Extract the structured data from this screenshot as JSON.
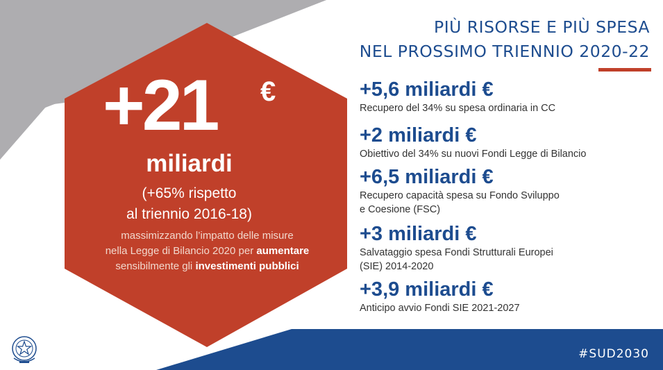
{
  "colors": {
    "gray": "#aeadb0",
    "hexagon": "#c0402a",
    "navy": "#1d4c8f",
    "text": "#333333"
  },
  "hexagon": {
    "headline": "+21",
    "currency": "€",
    "unit": "miliardi",
    "percent_line1": "(+65% rispetto",
    "percent_line2": "al triennio 2016-18)",
    "note_line1": "massimizzando l’impatto delle misure",
    "note_line2_a": "nella Legge di Bilancio 2020 per ",
    "note_line2_b": "aumentare",
    "note_line3_a": "sensibilmente gli ",
    "note_line3_b": "investimenti pubblici"
  },
  "title": {
    "line1": "PIÙ RISORSE E PIÙ SPESA",
    "line2": "NEL PROSSIMO TRIENNIO 2020-22"
  },
  "items": [
    {
      "amount": "+5,6 miliardi €",
      "desc_lines": [
        "Recupero del 34% su spesa ordinaria in CC"
      ]
    },
    {
      "amount": "+2 miliardi €",
      "desc_lines": [
        "Obiettivo del 34% su nuovi Fondi Legge di Bilancio"
      ]
    },
    {
      "amount": "+6,5 miliardi €",
      "desc_lines": [
        "Recupero capacità spesa su Fondo Sviluppo",
        "e Coesione (FSC)"
      ]
    },
    {
      "amount": "+3 miliardi €",
      "desc_lines": [
        "Salvataggio spesa Fondi Strutturali Europei",
        "(SIE) 2014-2020"
      ]
    },
    {
      "amount": "+3,9 miliardi €",
      "desc_lines": [
        "Anticipo avvio Fondi SIE 2021-2027"
      ]
    }
  ],
  "footer": {
    "hashtag": "#SUD2030",
    "emblem_icon": "italian-republic-emblem-icon"
  }
}
